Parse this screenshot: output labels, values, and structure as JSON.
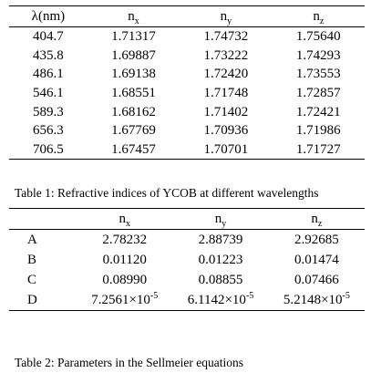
{
  "table1": {
    "headers": {
      "wavelength": "λ(nm)",
      "nx": "n",
      "nx_sub": "x",
      "ny": "n",
      "ny_sub": "y",
      "nz": "n",
      "nz_sub": "z"
    },
    "rows": [
      {
        "wl": "404.7",
        "nx": "1.71317",
        "ny": "1.74732",
        "nz": "1.75640"
      },
      {
        "wl": "435.8",
        "nx": "1.69887",
        "ny": "1.73222",
        "nz": "1.74293"
      },
      {
        "wl": "486.1",
        "nx": "1.69138",
        "ny": "1.72420",
        "nz": "1.73553"
      },
      {
        "wl": "546.1",
        "nx": "1.68551",
        "ny": "1.71748",
        "nz": "1.72857"
      },
      {
        "wl": "589.3",
        "nx": "1.68162",
        "ny": "1.71402",
        "nz": "1.72421"
      },
      {
        "wl": "656.3",
        "nx": "1.67769",
        "ny": "1.70936",
        "nz": "1.71986"
      },
      {
        "wl": "706.5",
        "nx": "1.67457",
        "ny": "1.70701",
        "nz": "1.71727"
      }
    ],
    "caption": "Table 1: Refractive indices of YCOB at different wavelengths"
  },
  "table2": {
    "headers": {
      "nx": "n",
      "nx_sub": "x",
      "ny": "n",
      "ny_sub": "y",
      "nz": "n",
      "nz_sub": "z"
    },
    "rows": [
      {
        "param": "A",
        "nx": "2.78232",
        "ny": "2.88739",
        "nz": "2.92685"
      },
      {
        "param": "B",
        "nx": "0.01120",
        "ny": "0.01223",
        "nz": "0.01474"
      },
      {
        "param": "C",
        "nx": "0.08990",
        "ny": "0.08855",
        "nz": "0.07466"
      }
    ],
    "rowD": {
      "param": "D",
      "nx_mant": "7.2561×10",
      "nx_exp": "-5",
      "ny_mant": "6.1142×10",
      "ny_exp": "-5",
      "nz_mant": "5.2148×10",
      "nz_exp": "-5"
    },
    "caption": "Table 2: Parameters in the Sellmeier equations"
  }
}
